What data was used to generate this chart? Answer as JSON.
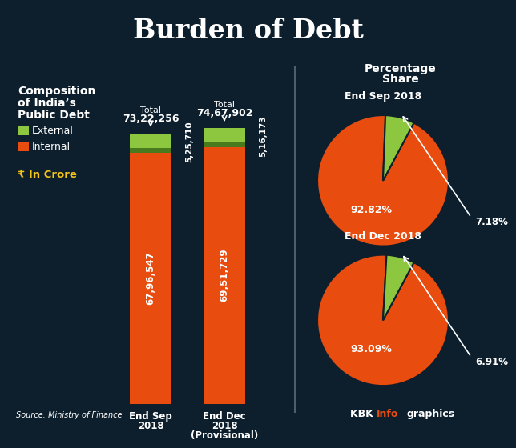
{
  "title": "Burden of Debt",
  "bg_color": "#0d1f2d",
  "header_bg": "#0a1520",
  "bars": [
    {
      "label": "End Sep\n2018",
      "total_line1": "Total",
      "total_line2": "73,22,256",
      "internal_val": 6796547,
      "external_val": 525710,
      "internal_label": "67,96,547",
      "external_label": "5,25,710"
    },
    {
      "label": "End Dec\n2018\n(Provisional)",
      "total_line1": "Total",
      "total_line2": "74,67,902",
      "internal_val": 6951729,
      "external_val": 516173,
      "internal_label": "69,51,729",
      "external_label": "5,16,173"
    }
  ],
  "pies": [
    {
      "title": "End Sep 2018",
      "internal_pct": 92.82,
      "external_pct": 7.18,
      "internal_label": "92.82%",
      "external_label": "7.18%"
    },
    {
      "title": "End Dec 2018",
      "internal_pct": 93.09,
      "external_pct": 6.91,
      "internal_label": "93.09%",
      "external_label": "6.91%"
    }
  ],
  "color_internal": "#e84c0e",
  "color_external_light": "#8dc63f",
  "color_external_dark": "#4a7a1e",
  "color_white": "#ffffff",
  "color_yellow": "#f5c518",
  "color_red_kbk": "#e84c0e",
  "pie_section_title": "Percentage\nShare"
}
